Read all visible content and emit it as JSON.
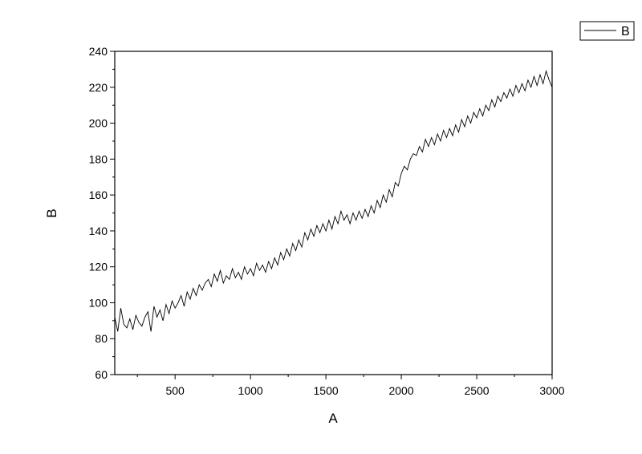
{
  "chart_data": {
    "type": "line",
    "xlabel": "A",
    "ylabel": "B",
    "xlim": [
      100,
      3000
    ],
    "ylim": [
      60,
      240
    ],
    "xticks": [
      500,
      1000,
      1500,
      2000,
      2500,
      3000
    ],
    "yticks": [
      60,
      80,
      100,
      120,
      140,
      160,
      180,
      200,
      220,
      240
    ],
    "legend": "outside-top-right",
    "series": [
      {
        "name": "B",
        "color": "#000000",
        "x": [
          100,
          120,
          140,
          160,
          180,
          200,
          220,
          240,
          260,
          280,
          300,
          320,
          340,
          360,
          380,
          400,
          420,
          440,
          460,
          480,
          500,
          520,
          540,
          560,
          580,
          600,
          620,
          640,
          660,
          680,
          700,
          720,
          740,
          760,
          780,
          800,
          820,
          840,
          860,
          880,
          900,
          920,
          940,
          960,
          980,
          1000,
          1020,
          1040,
          1060,
          1080,
          1100,
          1120,
          1140,
          1160,
          1180,
          1200,
          1220,
          1240,
          1260,
          1280,
          1300,
          1320,
          1340,
          1360,
          1380,
          1400,
          1420,
          1440,
          1460,
          1480,
          1500,
          1520,
          1540,
          1560,
          1580,
          1600,
          1620,
          1640,
          1660,
          1680,
          1700,
          1720,
          1740,
          1760,
          1780,
          1800,
          1820,
          1840,
          1860,
          1880,
          1900,
          1920,
          1940,
          1960,
          1980,
          2000,
          2020,
          2040,
          2060,
          2080,
          2100,
          2120,
          2140,
          2160,
          2180,
          2200,
          2220,
          2240,
          2260,
          2280,
          2300,
          2320,
          2340,
          2360,
          2380,
          2400,
          2420,
          2440,
          2460,
          2480,
          2500,
          2520,
          2540,
          2560,
          2580,
          2600,
          2620,
          2640,
          2660,
          2680,
          2700,
          2720,
          2740,
          2760,
          2780,
          2800,
          2820,
          2840,
          2860,
          2880,
          2900,
          2920,
          2940,
          2960,
          2980,
          3000
        ],
        "values": [
          92,
          84,
          97,
          88,
          86,
          91,
          85,
          93,
          89,
          87,
          92,
          95,
          84,
          98,
          92,
          96,
          90,
          99,
          94,
          101,
          97,
          100,
          104,
          98,
          106,
          102,
          108,
          104,
          110,
          107,
          111,
          113,
          109,
          116,
          112,
          118,
          111,
          115,
          113,
          119,
          114,
          117,
          113,
          120,
          116,
          119,
          115,
          122,
          118,
          121,
          117,
          123,
          119,
          125,
          121,
          128,
          124,
          130,
          126,
          133,
          129,
          135,
          131,
          139,
          135,
          141,
          137,
          143,
          139,
          144,
          140,
          146,
          141,
          148,
          144,
          151,
          146,
          149,
          144,
          150,
          146,
          151,
          147,
          152,
          148,
          154,
          150,
          157,
          153,
          160,
          156,
          163,
          159,
          167,
          165,
          172,
          176,
          174,
          180,
          183,
          182,
          187,
          184,
          191,
          187,
          192,
          188,
          194,
          190,
          196,
          192,
          197,
          193,
          199,
          195,
          202,
          198,
          204,
          200,
          206,
          203,
          208,
          204,
          210,
          207,
          213,
          209,
          215,
          212,
          217,
          214,
          219,
          215,
          221,
          217,
          222,
          218,
          224,
          220,
          226,
          221,
          227,
          222,
          229,
          224,
          220
        ]
      }
    ]
  }
}
